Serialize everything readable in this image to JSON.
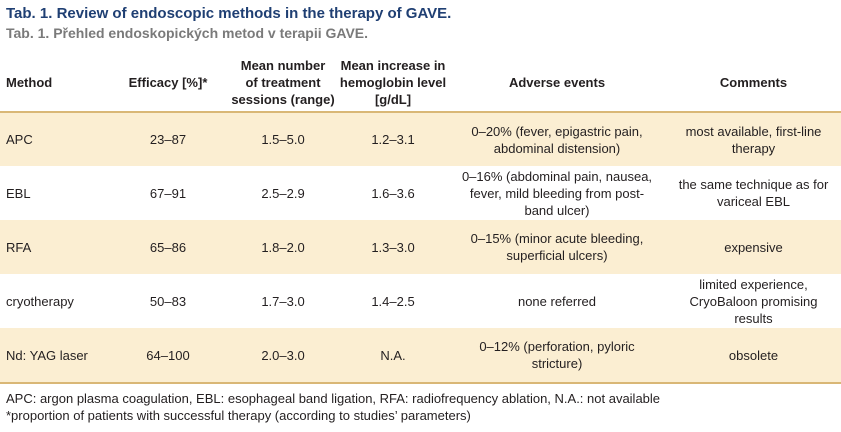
{
  "title": "Tab. 1. Review of endoscopic methods in the therapy of GAVE.",
  "subtitle": "Tab. 1. Přehled endoskopických metod v terapii GAVE.",
  "columns": {
    "method": "Method",
    "efficacy": "Efficacy [%]*",
    "sessions": [
      "Mean number",
      "of treatment",
      "sessions (range)"
    ],
    "hemoglobin": [
      "Mean increase in",
      "hemoglobin level",
      "[g/dL]"
    ],
    "adverse": "Adverse events",
    "comments": "Comments"
  },
  "rows": [
    {
      "method": "APC",
      "efficacy": "23–87",
      "sessions": "1.5–5.0",
      "hemoglobin": "1.2–3.1",
      "adverse": [
        "0–20% (fever, epigastric pain,",
        "abdominal distension)"
      ],
      "comments": [
        "most available, first-line",
        "therapy"
      ]
    },
    {
      "method": "EBL",
      "efficacy": "67–91",
      "sessions": "2.5–2.9",
      "hemoglobin": "1.6–3.6",
      "adverse": [
        "0–16% (abdominal pain, nausea,",
        "fever, mild bleeding from post-",
        "band ulcer)"
      ],
      "comments": [
        "the same technique as for",
        "variceal EBL"
      ]
    },
    {
      "method": "RFA",
      "efficacy": "65–86",
      "sessions": "1.8–2.0",
      "hemoglobin": "1.3–3.0",
      "adverse": [
        "0–15% (minor acute bleeding,",
        "superficial ulcers)"
      ],
      "comments": [
        "expensive"
      ]
    },
    {
      "method": "cryotherapy",
      "efficacy": "50–83",
      "sessions": "1.7–3.0",
      "hemoglobin": "1.4–2.5",
      "adverse": [
        "none referred"
      ],
      "comments": [
        "limited experience,",
        "CryoBaloon promising",
        "results"
      ]
    },
    {
      "method": "Nd: YAG laser",
      "efficacy": "64–100",
      "sessions": "2.0–3.0",
      "hemoglobin": "N.A.",
      "adverse": [
        "0–12% (perforation, pyloric",
        "stricture)"
      ],
      "comments": [
        "obsolete"
      ]
    }
  ],
  "footnotes": [
    "APC: argon plasma coagulation, EBL: esophageal band ligation, RFA: radiofrequency ablation, N.A.: not available",
    "*proportion of patients with successful therapy (according to studies’ parameters)"
  ],
  "colors": {
    "title": "#1f3f73",
    "subtitle": "#7a7a7a",
    "row_shade": "#fbeed2",
    "rule": "#d9b776"
  }
}
